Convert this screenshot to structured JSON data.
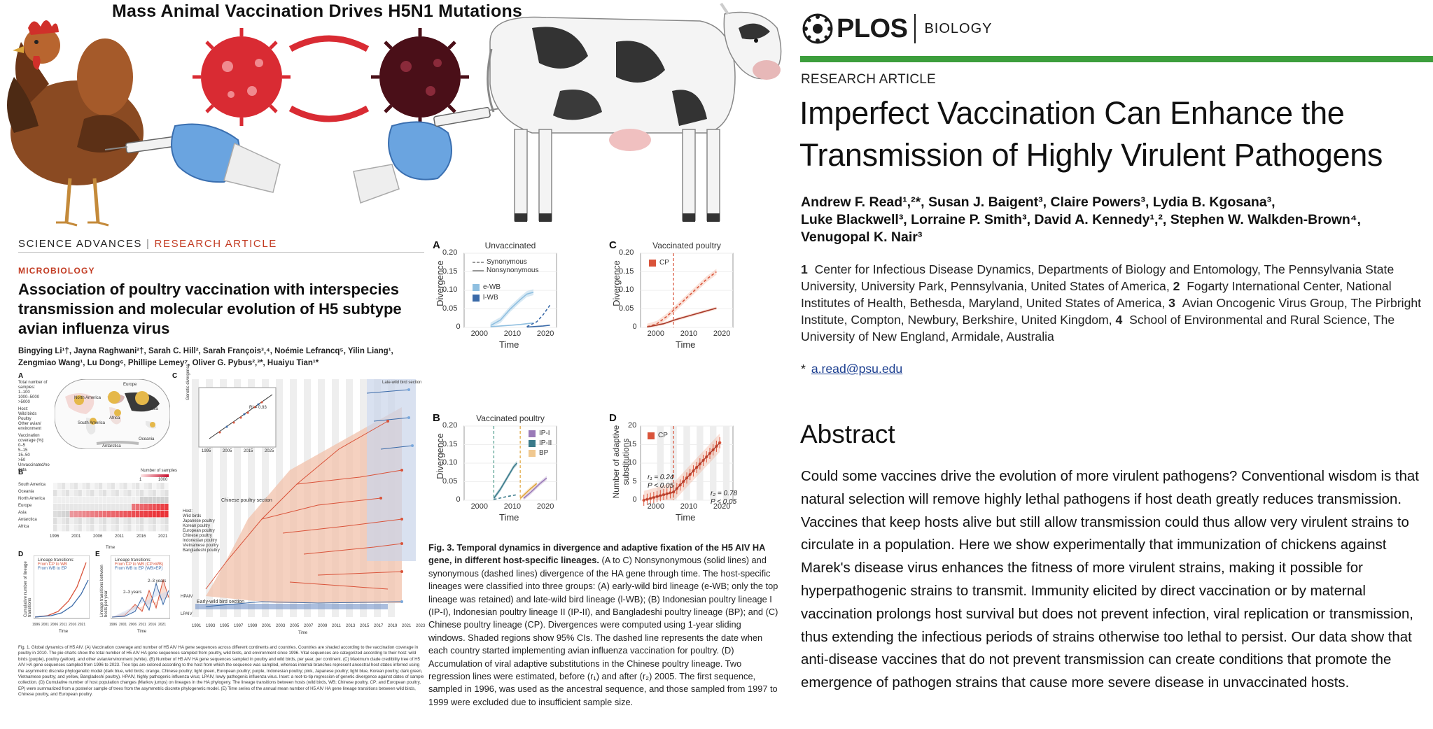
{
  "banner": {
    "title": "Mass Animal Vaccination Drives H5N1 Mutations"
  },
  "science_advances": {
    "journal": "SCIENCE ADVANCES",
    "separator": "|",
    "article_type": "RESEARCH ARTICLE",
    "section": "MICROBIOLOGY",
    "title": "Association of poultry vaccination with interspecies transmission and molecular evolution of H5 subtype avian influenza virus",
    "authors": "Bingying Li¹†, Jayna Raghwani²†, Sarah C. Hill², Sarah François³,⁴, Noémie Lefrancq⁵, Yilin Liang¹, Zengmiao Wang¹, Lu Dong⁶, Phillipe Lemey⁷, Oliver G. Pybus²,³*, Huaiyu Tian¹*",
    "fig1": {
      "labels": {
        "a": "A",
        "b": "B",
        "c": "C",
        "d": "D",
        "e": "E"
      },
      "legend_title": "Total number of samples:",
      "legend_items": [
        "1–100",
        "1000–5000",
        ">5000"
      ],
      "host_title": "Host:",
      "host_items": [
        "Wild birds",
        "Poultry",
        "Other avian/ environment"
      ],
      "vacc_title": "Vaccination coverage (%):",
      "vacc_items": [
        "0–5",
        "5–15",
        "15–50",
        ">50",
        "Unvaccinated/no data"
      ],
      "map_regions": [
        "North America",
        "South America",
        "Africa",
        "Europe",
        "Asia",
        "Oceania",
        "Antarctica"
      ],
      "heat_rows": [
        "South America",
        "Oceania",
        "North America",
        "Europe",
        "Asia",
        "Antarctica",
        "Africa"
      ],
      "heat_years": [
        "1996",
        "2001",
        "2006",
        "2011",
        "2016",
        "2021"
      ],
      "heat_legend": "Number of samples",
      "heat_legend_vals": [
        "1",
        "1000"
      ],
      "heat_xlabel": "Time",
      "tree_sections": [
        "Chinese poultry section",
        "Late-wild bird section",
        "Early-wild bird section"
      ],
      "tree_labels": [
        "HPAIV",
        "LPAIV"
      ],
      "tree_years": [
        "1991",
        "1993",
        "1995",
        "1997",
        "1999",
        "2001",
        "2003",
        "2005",
        "2007",
        "2009",
        "2011",
        "2013",
        "2015",
        "2017",
        "2019",
        "2021",
        "2023"
      ],
      "tree_xlabel": "Time",
      "tree_host_title": "Host:",
      "tree_host_items": [
        "Wild birds",
        "Japanese poultry",
        "Korean poultry",
        "European poultry",
        "Chinese poultry",
        "Indonesian poultry",
        "Vietnamese poultry",
        "Bangladeshi poultry"
      ],
      "inset_ylabel": "Genetic divergence",
      "inset_r2": "R² = 0.93",
      "inset_years": [
        "1995",
        "2005",
        "2015",
        "2025"
      ],
      "inset_yticks": [
        "0.05",
        "0.10",
        "0.15"
      ],
      "d_legend_title": "Lineage transitions:",
      "d_legend": [
        "From CP to WB",
        "From WB to EP"
      ],
      "d_ylabel": "Cumulative number of lineage transitions",
      "d_years": [
        "1996",
        "2001",
        "2006",
        "2011",
        "2016",
        "2021"
      ],
      "d_xlabel": "Time",
      "e_legend_title": "Lineage transitions:",
      "e_legend": [
        "From CP to WB (CP>WB)",
        "From WB to EP (WB>EP)"
      ],
      "e_ylabel": "Lineage transitions between hosts per year",
      "e_annotations": [
        "2–3 years",
        "2–3 years"
      ],
      "e_years": [
        "1996",
        "2001",
        "2006",
        "2011",
        "2016",
        "2021"
      ],
      "e_xlabel": "Time",
      "caption": "Fig. 1. Global dynamics of H5 AIV. (A) Vaccination coverage and number of H5 AIV HA gene sequences across different continents and countries. Countries are shaded according to the vaccination coverage in poultry in 2010. The pie charts show the total number of H5 AIV HA gene sequences sampled from poultry, wild birds, and environment since 1996. Vital sequences are categorized according to their host: wild birds (purple), poultry (yellow), and other avian/environment (white). (B) Number of H5 AIV HA gene sequences sampled in poultry and wild birds, per year, per continent. (C) Maximum clade credibility tree of H5 AIV HA gene sequences sampled from 1996 to 2023. Tree tips are colored according to the host from which the sequence was sampled, whereas internal branches represent ancestral host states inferred using the asymmetric discrete phylogenetic model (dark blue, wild birds; orange, Chinese poultry; light green, European poultry; purple, Indonesian poultry; pink, Japanese poultry; light blue, Korean poultry; dark green, Vietnamese poultry; and yellow, Bangladeshi poultry). HPAIV, highly pathogenic influenza virus; LPAIV, lowly pathogenic influenza virus. Inset: a root-to-tip regression of genetic divergence against dates of sample collection. (D) Cumulative number of host population changes (Markov jumps) on lineages in the HA phylogeny. The lineage transitions between hosts (wild birds, WB; Chinese poultry, CP; and European poultry, EP) were summarized from a posterior sample of trees from the asymmetric discrete phylogenetic model. (E) Time series of the annual mean number of H5 AIV HA gene lineage transitions between wild birds, Chinese poultry, and European poultry."
    },
    "fig3": {
      "panels": [
        {
          "letter": "A",
          "title": "Unvaccinated",
          "legend": [
            "Synonymous",
            "Nonsynonymous",
            "e-WB",
            "l-WB"
          ]
        },
        {
          "letter": "C",
          "title": "Vaccinated poultry",
          "legend": [
            "CP"
          ]
        },
        {
          "letter": "B",
          "title": "Vaccinated poultry",
          "legend": [
            "IP-I",
            "IP-II",
            "BP"
          ]
        },
        {
          "letter": "D",
          "title": "",
          "legend": [
            "CP"
          ],
          "annotations": [
            "r₁ = 0.24",
            "P < 0.05",
            "r₂ = 0.78",
            "P < 0.05"
          ]
        }
      ],
      "y_divergence_ticks": [
        "0",
        "0.05",
        "0.10",
        "0.15",
        "0.20"
      ],
      "y_subst_ticks": [
        "0",
        "5",
        "10",
        "15",
        "20"
      ],
      "x_ticks": [
        "2000",
        "2010",
        "2020"
      ],
      "x_ticks_d": [
        "2000",
        "2010",
        "2020"
      ],
      "xlabel": "Time",
      "ylabel_div": "Divergence",
      "ylabel_subst": "Number of adaptive substitutions",
      "caption_bold": "Fig. 3. Temporal dynamics in divergence and adaptive fixation of the H5 AIV HA gene, in different host-specific lineages.",
      "caption_rest": "(A to C) Nonsynonymous (solid lines) and synonymous (dashed lines) divergence of the HA gene through time. The host-specific lineages were classified into three groups: (A) early-wild bird lineage (e-WB; only the top lineage was retained) and late-wild bird lineage (l-WB); (B) Indonesian poultry lineage I (IP-I), Indonesian poultry lineage II (IP-II), and Bangladeshi poultry lineage (BP); and (C) Chinese poultry lineage (CP). Divergences were computed using 1-year sliding windows. Shaded regions show 95% CIs. The dashed line represents the date when each country started implementing avian influenza vaccination for poultry. (D) Accumulation of viral adaptive substitutions in the Chinese poultry lineage. Two regression lines were estimated, before (r₁) and after (r₂) 2005. The first sequence, sampled in 1996, was used as the ancestral sequence, and those sampled from 1997 to 1999 were excluded due to insufficient sample size."
    }
  },
  "plos": {
    "logo_word": "PLOS",
    "journal": "BIOLOGY",
    "article_type": "RESEARCH ARTICLE",
    "title": "Imperfect Vaccination Can Enhance the Transmission of Highly Virulent Pathogens",
    "authors_line1": "Andrew F. Read¹,²*, Susan J. Baigent³, Claire Powers³, Lydia B. Kgosana³,",
    "authors_line2": "Luke Blackwell³, Lorraine P. Smith³, David A. Kennedy¹,², Stephen W. Walkden-Brown⁴,",
    "authors_line3": "Venugopal K. Nair³",
    "affil_1n": "1",
    "affil_1": "Center for Infectious Disease Dynamics, Departments of Biology and Entomology, The Pennsylvania State University, University Park, Pennsylvania, United States of America,",
    "affil_2n": "2",
    "affil_2": "Fogarty International Center, National Institutes of Health, Bethesda, Maryland, United States of America,",
    "affil_3n": "3",
    "affil_3": "Avian Oncogenic Virus Group, The Pirbright Institute, Compton, Newbury, Berkshire, United Kingdom,",
    "affil_4n": "4",
    "affil_4": "School of Environmental and Rural Science, The University of New England, Armidale, Australia",
    "email_star": "*",
    "email": "a.read@psu.edu",
    "abstract_heading": "Abstract",
    "abstract": "Could some vaccines drive the evolution of more virulent pathogens? Conventional wisdom is that natural selection will remove highly lethal pathogens if host death greatly reduces transmission. Vaccines that keep hosts alive but still allow transmission could thus allow very virulent strains to circulate in a population. Here we show experimentally that immunization of chickens against Marek's disease virus enhances the fitness of more virulent strains, making it possible for hyperpathogenic strains to transmit. Immunity elicited by direct vaccination or by maternal vaccination prolongs host survival but does not prevent infection, viral replication or transmission, thus extending the infectious periods of strains otherwise too lethal to persist. Our data show that anti-disease vaccines that do not prevent transmission can create conditions that promote the emergence of pathogen strains that cause more severe disease in unvaccinated hosts."
  },
  "colors": {
    "plos_green": "#3c9e3c",
    "sa_red": "#c23b22",
    "virus_red": "#d92b33",
    "virus_dark": "#4a0f18",
    "glove_blue": "#6aa4e0",
    "cp_orange": "#d9533a",
    "ewb_light": "#8fbfe0",
    "lwb_dark": "#3a6aa8"
  }
}
